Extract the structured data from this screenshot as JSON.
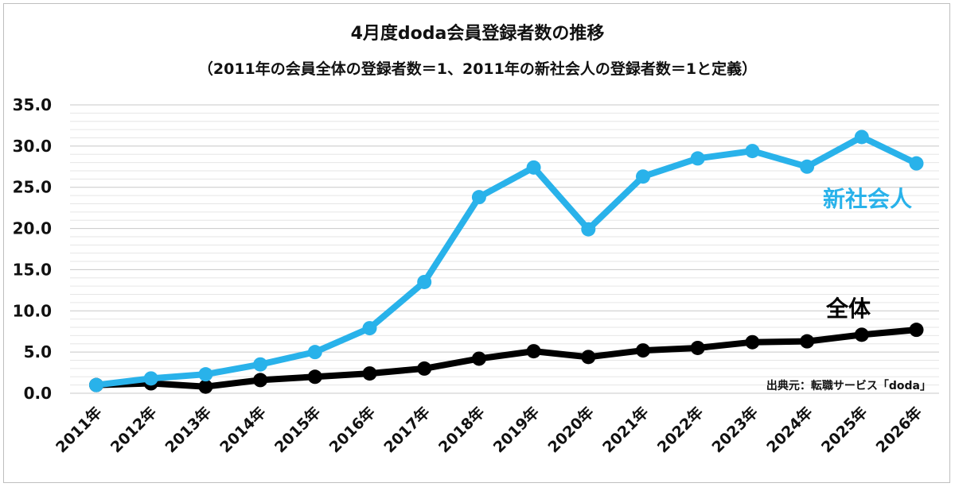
{
  "chart_data": {
    "type": "line",
    "title": "4月度doda会員登録者数の推移",
    "subtitle": "（2011年の会員全体の登録者数＝1、2011年の新社会人の登録者数＝1と定義）",
    "categories": [
      "2011年",
      "2012年",
      "2013年",
      "2014年",
      "2015年",
      "2016年",
      "2017年",
      "2018年",
      "2019年",
      "2020年",
      "2021年",
      "2022年",
      "2023年",
      "2024年",
      "2025年",
      "2026年"
    ],
    "series": [
      {
        "name": "新社会人",
        "color": "#29b2ea",
        "values": [
          1.0,
          1.8,
          2.3,
          3.5,
          5.0,
          7.9,
          13.5,
          23.8,
          27.4,
          19.9,
          26.3,
          28.5,
          29.4,
          27.5,
          31.1,
          27.9
        ]
      },
      {
        "name": "全体",
        "color": "#000000",
        "values": [
          1.0,
          1.2,
          0.8,
          1.6,
          2.0,
          2.4,
          3.0,
          4.2,
          5.1,
          4.4,
          5.2,
          5.5,
          6.2,
          6.3,
          7.1,
          7.7
        ]
      }
    ],
    "yticks": [
      "0.0",
      "5.0",
      "10.0",
      "15.0",
      "20.0",
      "25.0",
      "30.0",
      "35.0"
    ],
    "ylim": [
      0,
      35
    ],
    "grid": true,
    "source": "出典元：転職サービス「doda」"
  }
}
